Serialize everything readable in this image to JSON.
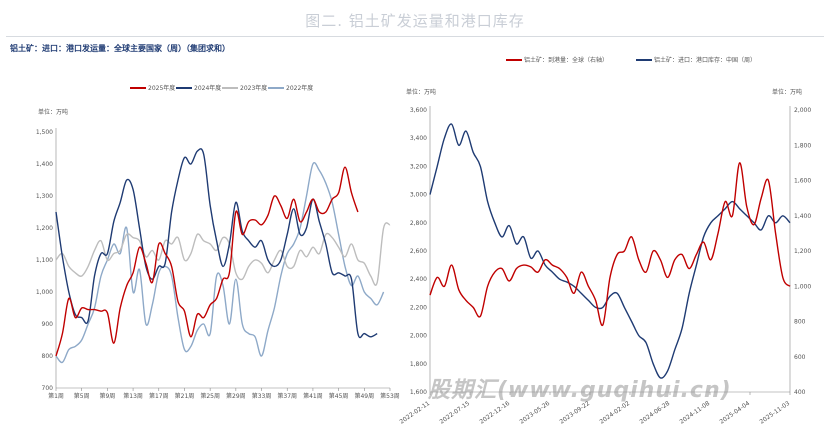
{
  "page": {
    "title": "图二. 铝土矿发运量和港口库存",
    "watermark": "股期汇(www.guqihui.cn)"
  },
  "chart_data": [
    {
      "type": "line",
      "title": "铝土矿：进口：港口发运量：全球主要国家（周）（集团求和）",
      "ylabel": "单位：万吨",
      "ylim": [
        700,
        1500
      ],
      "yticks": [
        "700",
        "800",
        "900",
        "1,000",
        "1,100",
        "1,200",
        "1,300",
        "1,400",
        "1,500"
      ],
      "xrange": [
        1,
        53
      ],
      "xticks": [
        "第1周",
        "第5周",
        "第9周",
        "第13周",
        "第17周",
        "第21周",
        "第25周",
        "第29周",
        "第33周",
        "第37周",
        "第41周",
        "第45周",
        "第49周",
        "第53周"
      ],
      "xtick_values": [
        1,
        5,
        9,
        13,
        17,
        21,
        25,
        29,
        33,
        37,
        41,
        45,
        49,
        53
      ],
      "legend_position": "top",
      "series": [
        {
          "name": "2025年度",
          "color": "#c00000",
          "x": [
            1,
            2,
            3,
            4,
            5,
            6,
            7,
            8,
            9,
            10,
            11,
            12,
            13,
            14,
            15,
            16,
            17,
            18,
            19,
            20,
            21,
            22,
            23,
            24,
            25,
            26,
            27,
            28,
            29,
            30,
            31,
            32,
            33,
            34,
            35,
            36,
            37,
            38,
            39,
            40,
            41,
            42,
            43,
            44,
            45,
            46,
            47,
            48
          ],
          "y": [
            800,
            870,
            980,
            920,
            950,
            945,
            945,
            940,
            935,
            840,
            950,
            1020,
            1060,
            1140,
            1090,
            1030,
            1150,
            1120,
            1080,
            970,
            940,
            860,
            930,
            920,
            960,
            980,
            1040,
            1060,
            1250,
            1180,
            1220,
            1225,
            1210,
            1240,
            1300,
            1270,
            1230,
            1290,
            1220,
            1250,
            1290,
            1250,
            1250,
            1290,
            1310,
            1390,
            1310,
            1250
          ]
        },
        {
          "name": "2024年度",
          "color": "#1f3b73",
          "x": [
            1,
            2,
            3,
            4,
            5,
            6,
            7,
            8,
            9,
            10,
            11,
            12,
            13,
            14,
            15,
            16,
            17,
            18,
            19,
            20,
            21,
            22,
            23,
            24,
            25,
            26,
            27,
            28,
            29,
            30,
            31,
            32,
            33,
            34,
            35,
            36,
            37,
            38,
            39,
            40,
            41,
            42,
            43,
            44,
            45,
            46,
            47,
            48,
            49,
            50,
            51
          ],
          "y": [
            1250,
            1110,
            1000,
            930,
            920,
            910,
            1050,
            1120,
            1120,
            1220,
            1280,
            1350,
            1320,
            1200,
            1080,
            1040,
            1080,
            1090,
            1250,
            1350,
            1420,
            1400,
            1440,
            1430,
            1270,
            1160,
            1080,
            1150,
            1280,
            1190,
            1160,
            1140,
            1160,
            1100,
            1080,
            1100,
            1180,
            1260,
            1180,
            1200,
            1290,
            1220,
            1150,
            1060,
            1060,
            1050,
            1040,
            870,
            870,
            860,
            870
          ]
        },
        {
          "name": "2023年度",
          "color": "#bdbdbd",
          "x": [
            1,
            2,
            3,
            4,
            5,
            6,
            7,
            8,
            9,
            10,
            11,
            12,
            13,
            14,
            15,
            16,
            17,
            18,
            19,
            20,
            21,
            22,
            23,
            24,
            25,
            26,
            27,
            28,
            29,
            30,
            31,
            32,
            33,
            34,
            35,
            36,
            37,
            38,
            39,
            40,
            41,
            42,
            43,
            44,
            45,
            46,
            47,
            48,
            49,
            50,
            51,
            52,
            53
          ],
          "y": [
            1100,
            1120,
            1080,
            1060,
            1050,
            1080,
            1130,
            1160,
            1100,
            1120,
            1130,
            1180,
            1170,
            1160,
            1110,
            1130,
            1100,
            1160,
            1150,
            1170,
            1100,
            1120,
            1180,
            1160,
            1150,
            1130,
            1170,
            1150,
            1060,
            1040,
            1080,
            1100,
            1090,
            1060,
            1100,
            1130,
            1080,
            1080,
            1130,
            1110,
            1140,
            1120,
            1180,
            1170,
            1140,
            1110,
            1150,
            1100,
            1090,
            1050,
            1030,
            1200,
            1210
          ]
        },
        {
          "name": "2022年度",
          "color": "#8ea9c8",
          "x": [
            1,
            2,
            3,
            4,
            5,
            6,
            7,
            8,
            9,
            10,
            11,
            12,
            13,
            14,
            15,
            16,
            17,
            18,
            19,
            20,
            21,
            22,
            23,
            24,
            25,
            26,
            27,
            28,
            29,
            30,
            31,
            32,
            33,
            34,
            35,
            36,
            37,
            38,
            39,
            40,
            41,
            42,
            43,
            44,
            45,
            46,
            47,
            48,
            49,
            50,
            51,
            52
          ],
          "y": [
            800,
            780,
            820,
            830,
            850,
            900,
            950,
            1050,
            1100,
            1150,
            1120,
            1200,
            1000,
            1070,
            900,
            960,
            1060,
            1080,
            1050,
            920,
            820,
            830,
            880,
            900,
            870,
            1050,
            1020,
            900,
            1040,
            900,
            870,
            860,
            800,
            880,
            950,
            1050,
            1120,
            1150,
            1200,
            1300,
            1400,
            1380,
            1340,
            1280,
            1180,
            1080,
            1020,
            1050,
            1000,
            980,
            960,
            1000
          ]
        }
      ]
    },
    {
      "type": "line",
      "ylabel_left": "单位：万吨",
      "ylabel_right": "单位：万吨",
      "ylim_left": [
        1600,
        3600
      ],
      "ylim_right": [
        400,
        2000
      ],
      "yticks_left": [
        "1,600",
        "1,800",
        "2,000",
        "2,200",
        "2,400",
        "2,600",
        "2,800",
        "3,000",
        "3,200",
        "3,400",
        "3,600"
      ],
      "yticks_right": [
        "400",
        "600",
        "800",
        "1,000",
        "1,200",
        "1,400",
        "1,600",
        "1,800",
        "2,000"
      ],
      "xticks": [
        "2022-02-11",
        "2022-07-15",
        "2022-12-16",
        "2023-05-26",
        "2023-09-22",
        "2024-02-02",
        "2024-06-28",
        "2024-11-08",
        "2025-04-04",
        "2025-11-03"
      ],
      "xrange": [
        0,
        100
      ],
      "legend_position": "top",
      "series": [
        {
          "name": "铝土矿：到港量：全球（右轴）",
          "color": "#c00000",
          "axis": "right",
          "x": [
            0,
            2,
            4,
            6,
            8,
            10,
            12,
            14,
            16,
            18,
            20,
            22,
            24,
            26,
            28,
            30,
            32,
            34,
            36,
            38,
            40,
            42,
            44,
            46,
            48,
            50,
            52,
            54,
            56,
            58,
            60,
            62,
            64,
            66,
            68,
            70,
            72,
            74,
            76,
            78,
            80,
            82,
            84,
            86,
            88,
            90,
            92,
            94,
            96,
            98,
            100
          ],
          "y": [
            950,
            1050,
            1000,
            1120,
            980,
            920,
            880,
            830,
            1000,
            1080,
            1100,
            1030,
            1100,
            1120,
            1110,
            1080,
            1150,
            1120,
            1100,
            1050,
            960,
            1080,
            1000,
            920,
            780,
            1050,
            1180,
            1200,
            1280,
            1150,
            1080,
            1200,
            1150,
            1050,
            1150,
            1180,
            1100,
            1180,
            1250,
            1150,
            1300,
            1480,
            1400,
            1700,
            1450,
            1350,
            1500,
            1600,
            1300,
            1050,
            1000
          ]
        },
        {
          "name": "铝土矿：进口：港口库存：中国（周）",
          "color": "#1f3b73",
          "axis": "left",
          "x": [
            0,
            2,
            4,
            6,
            8,
            10,
            12,
            14,
            16,
            18,
            20,
            22,
            24,
            26,
            28,
            30,
            32,
            34,
            36,
            38,
            40,
            42,
            44,
            46,
            48,
            50,
            52,
            54,
            56,
            58,
            60,
            62,
            64,
            66,
            68,
            70,
            72,
            74,
            76,
            78,
            80,
            82,
            84,
            86,
            88,
            90,
            92,
            94,
            96,
            98,
            100
          ],
          "y": [
            3000,
            3200,
            3400,
            3500,
            3350,
            3450,
            3300,
            3200,
            2950,
            2800,
            2700,
            2780,
            2650,
            2700,
            2550,
            2600,
            2500,
            2450,
            2400,
            2380,
            2350,
            2300,
            2250,
            2200,
            2200,
            2280,
            2300,
            2200,
            2100,
            2000,
            1950,
            1800,
            1700,
            1750,
            1900,
            2050,
            2300,
            2500,
            2700,
            2800,
            2850,
            2900,
            2950,
            2900,
            2850,
            2800,
            2750,
            2850,
            2800,
            2850,
            2800
          ]
        }
      ]
    }
  ]
}
